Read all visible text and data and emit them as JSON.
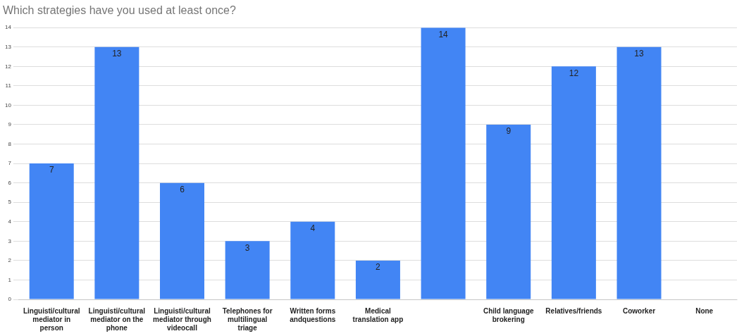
{
  "chart_data": {
    "type": "bar",
    "title": "Which strategies have you used at least once?",
    "categories": [
      "Linguisti/cultural mediator in person",
      "Linguisti/cultural mediator on the phone",
      "Linguisti/cultural mediator through videocall",
      "Telephones for multilingual triage",
      "Written forms andquestions",
      "Medical translation app",
      null,
      "Child language brokering",
      "Relatives/friends",
      "Coworker",
      "None"
    ],
    "values": [
      7,
      13,
      6,
      3,
      4,
      2,
      14,
      9,
      12,
      13,
      0
    ],
    "value_labels": [
      "7",
      "13",
      "6",
      "3",
      "4",
      "2",
      "14",
      "9",
      "12",
      "13",
      null
    ],
    "color": "#4285f4",
    "ylim": [
      0,
      14
    ],
    "yticks": [
      0,
      1,
      2,
      3,
      4,
      5,
      6,
      7,
      8,
      9,
      10,
      11,
      12,
      13,
      14
    ],
    "grid": "y"
  }
}
